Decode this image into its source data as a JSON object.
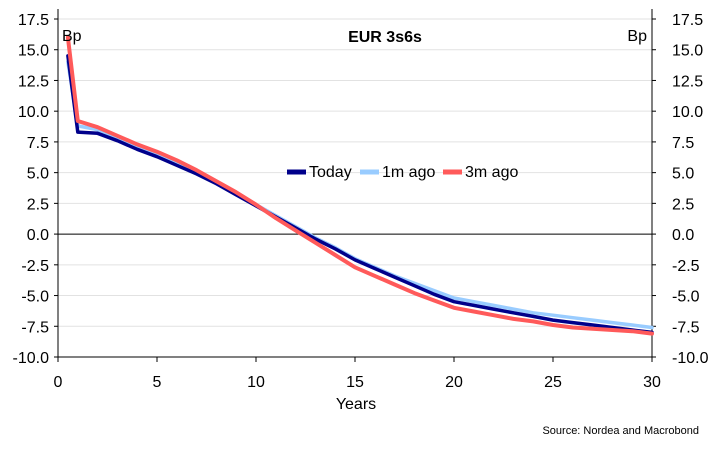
{
  "chart_data": {
    "type": "line",
    "title": "EUR 3s6s",
    "xlabel": "Years",
    "ylabel_left": "Bp",
    "ylabel_right": "Bp",
    "source": "Source: Nordea and Macrobond",
    "xlim": [
      0,
      30
    ],
    "ylim": [
      -10.0,
      17.5
    ],
    "x_ticks": [
      "0",
      "5",
      "10",
      "15",
      "20",
      "25",
      "30"
    ],
    "y_ticks": [
      "17.5",
      "15.0",
      "12.5",
      "10.0",
      "7.5",
      "5.0",
      "2.5",
      "0.0",
      "-2.5",
      "-5.0",
      "-7.5",
      "-10.0"
    ],
    "grid": true,
    "legend_position": "center-right",
    "series": [
      {
        "name": "Today",
        "color": "#00008b",
        "x": [
          0.5,
          1,
          2,
          3,
          4,
          5,
          6,
          7,
          8,
          9,
          10,
          11,
          12,
          13,
          14,
          15,
          16,
          17,
          18,
          19,
          20,
          21,
          22,
          23,
          24,
          25,
          26,
          27,
          28,
          29,
          30
        ],
        "y": [
          14.5,
          8.3,
          8.2,
          7.6,
          6.9,
          6.3,
          5.6,
          4.9,
          4.1,
          3.2,
          2.3,
          1.4,
          0.5,
          -0.4,
          -1.2,
          -2.1,
          -2.8,
          -3.5,
          -4.2,
          -4.9,
          -5.5,
          -5.8,
          -6.1,
          -6.4,
          -6.7,
          -7.0,
          -7.2,
          -7.4,
          -7.6,
          -7.8,
          -8.0
        ]
      },
      {
        "name": "1m ago",
        "color": "#99ccff",
        "x": [
          0.5,
          1,
          2,
          3,
          4,
          5,
          6,
          7,
          8,
          9,
          10,
          11,
          12,
          13,
          14,
          15,
          16,
          17,
          18,
          19,
          20,
          21,
          22,
          23,
          24,
          25,
          26,
          27,
          28,
          29,
          30
        ],
        "y": [
          14.0,
          8.8,
          8.5,
          7.8,
          7.0,
          6.4,
          5.7,
          5.0,
          4.2,
          3.3,
          2.4,
          1.5,
          0.6,
          -0.3,
          -1.1,
          -2.0,
          -2.7,
          -3.4,
          -4.0,
          -4.6,
          -5.2,
          -5.5,
          -5.8,
          -6.1,
          -6.4,
          -6.6,
          -6.8,
          -7.0,
          -7.2,
          -7.4,
          -7.6
        ]
      },
      {
        "name": "3m ago",
        "color": "#ff5a5a",
        "x": [
          0.5,
          1,
          2,
          3,
          4,
          5,
          6,
          7,
          8,
          9,
          10,
          11,
          12,
          13,
          14,
          15,
          16,
          17,
          18,
          19,
          20,
          21,
          22,
          23,
          24,
          25,
          26,
          27,
          28,
          29,
          30
        ],
        "y": [
          16.0,
          9.2,
          8.7,
          8.0,
          7.3,
          6.7,
          6.0,
          5.2,
          4.3,
          3.4,
          2.4,
          1.3,
          0.3,
          -0.7,
          -1.7,
          -2.7,
          -3.4,
          -4.1,
          -4.8,
          -5.4,
          -6.0,
          -6.3,
          -6.6,
          -6.9,
          -7.1,
          -7.4,
          -7.6,
          -7.7,
          -7.8,
          -7.9,
          -8.1
        ]
      }
    ]
  }
}
